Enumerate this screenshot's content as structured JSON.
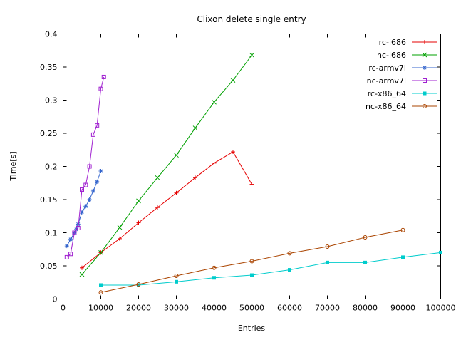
{
  "window": {
    "background": "#ffffff",
    "axis_color": "#000000"
  },
  "chart_data": {
    "type": "line",
    "title": "Clixon delete single entry",
    "xlabel": "Entries",
    "ylabel": "Time[s]",
    "xlim": [
      0,
      100000
    ],
    "ylim": [
      0,
      0.4
    ],
    "grid": false,
    "legend_position": "top-right-inside",
    "xticks": [
      0,
      10000,
      20000,
      30000,
      40000,
      50000,
      60000,
      70000,
      80000,
      90000,
      100000
    ],
    "xtick_labels": [
      "0",
      "10000",
      "20000",
      "30000",
      "40000",
      "50000",
      "60000",
      "70000",
      "80000",
      "90000",
      "100000"
    ],
    "yticks": [
      0,
      0.05,
      0.1,
      0.15,
      0.2,
      0.25,
      0.3,
      0.35,
      0.4
    ],
    "ytick_labels": [
      "0",
      "0.05",
      "0.1",
      "0.15",
      "0.2",
      "0.25",
      "0.3",
      "0.35",
      "0.4"
    ],
    "series": [
      {
        "name": "rc-i686",
        "color": "#e60000",
        "marker": "plus",
        "points": [
          [
            5000,
            0.047
          ],
          [
            10000,
            0.07
          ],
          [
            15000,
            0.091
          ],
          [
            20000,
            0.115
          ],
          [
            25000,
            0.138
          ],
          [
            30000,
            0.16
          ],
          [
            35000,
            0.183
          ],
          [
            40000,
            0.205
          ],
          [
            45000,
            0.222
          ],
          [
            50000,
            0.173
          ]
        ]
      },
      {
        "name": "nc-i686",
        "color": "#00a000",
        "marker": "cross",
        "points": [
          [
            5000,
            0.037
          ],
          [
            10000,
            0.07
          ],
          [
            15000,
            0.108
          ],
          [
            20000,
            0.148
          ],
          [
            25000,
            0.183
          ],
          [
            30000,
            0.217
          ],
          [
            35000,
            0.258
          ],
          [
            40000,
            0.297
          ],
          [
            45000,
            0.33
          ],
          [
            50000,
            0.368
          ]
        ]
      },
      {
        "name": "rc-armv7l",
        "color": "#3465cd",
        "marker": "asterisk",
        "points": [
          [
            1000,
            0.08
          ],
          [
            2000,
            0.09
          ],
          [
            3000,
            0.1
          ],
          [
            3500,
            0.105
          ],
          [
            4000,
            0.113
          ],
          [
            5000,
            0.131
          ],
          [
            6000,
            0.14
          ],
          [
            7000,
            0.15
          ],
          [
            8000,
            0.163
          ],
          [
            9000,
            0.177
          ],
          [
            10000,
            0.193
          ]
        ]
      },
      {
        "name": "nc-armv7l",
        "color": "#a020d0",
        "marker": "open-square",
        "points": [
          [
            1000,
            0.063
          ],
          [
            2000,
            0.068
          ],
          [
            3000,
            0.1
          ],
          [
            4000,
            0.107
          ],
          [
            5000,
            0.165
          ],
          [
            6000,
            0.172
          ],
          [
            7000,
            0.2
          ],
          [
            8000,
            0.248
          ],
          [
            9000,
            0.262
          ],
          [
            10000,
            0.317
          ],
          [
            10800,
            0.335
          ]
        ]
      },
      {
        "name": "rc-x86_64",
        "color": "#00cccc",
        "marker": "filled-square",
        "points": [
          [
            10000,
            0.021
          ],
          [
            20000,
            0.021
          ],
          [
            30000,
            0.026
          ],
          [
            40000,
            0.032
          ],
          [
            50000,
            0.036
          ],
          [
            60000,
            0.044
          ],
          [
            70000,
            0.055
          ],
          [
            80000,
            0.055
          ],
          [
            90000,
            0.063
          ],
          [
            100000,
            0.07
          ]
        ]
      },
      {
        "name": "nc-x86_64",
        "color": "#aa4400",
        "marker": "open-circle",
        "points": [
          [
            10000,
            0.01
          ],
          [
            20000,
            0.022
          ],
          [
            30000,
            0.035
          ],
          [
            40000,
            0.047
          ],
          [
            50000,
            0.057
          ],
          [
            60000,
            0.069
          ],
          [
            70000,
            0.079
          ],
          [
            80000,
            0.093
          ],
          [
            90000,
            0.104
          ]
        ]
      }
    ]
  }
}
